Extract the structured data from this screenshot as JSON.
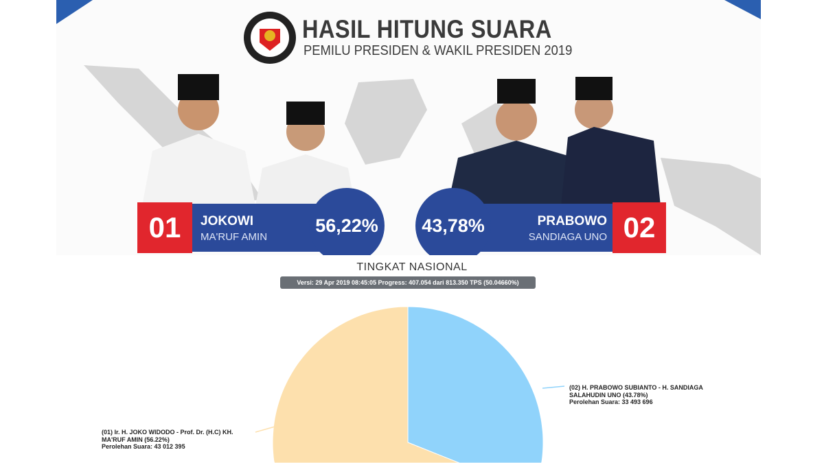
{
  "banner": {
    "logo_text": "KOMISI PEMILIHAN UMUM",
    "title": "HASIL HITUNG SUARA",
    "subtitle": "PEMILU PRESIDEN & WAKIL PRESIDEN 2019",
    "candidates": [
      {
        "number": "01",
        "name": "JOKOWI",
        "running_mate": "MA'RUF AMIN",
        "percent": "56,22%"
      },
      {
        "number": "02",
        "name": "PRABOWO",
        "running_mate": "SANDIAGA UNO",
        "percent": "43,78%"
      }
    ]
  },
  "heading": "TINGKAT NASIONAL",
  "version": "Versi: 29 Apr 2019 08:45:05 Progress: 407.054 dari 813.350 TPS (50.04660%)",
  "chart_data": {
    "type": "pie",
    "slices": [
      {
        "label": "(02) H. PRABOWO SUBIANTO - H. SANDIAGA SALAHUDIN UNO (43.78%)",
        "line2": "Perolehan Suara: 33 493 696",
        "value": 33493696,
        "percent": 43.78,
        "color": "#90d3fb"
      },
      {
        "label": "(01) Ir. H. JOKO WIDODO - Prof. Dr. (H.C) KH. MA'RUF AMIN (56.22%)",
        "line2": "Perolehan Suara: 43 012 395",
        "value": 43012395,
        "percent": 56.22,
        "color": "#fde0ad"
      }
    ]
  }
}
